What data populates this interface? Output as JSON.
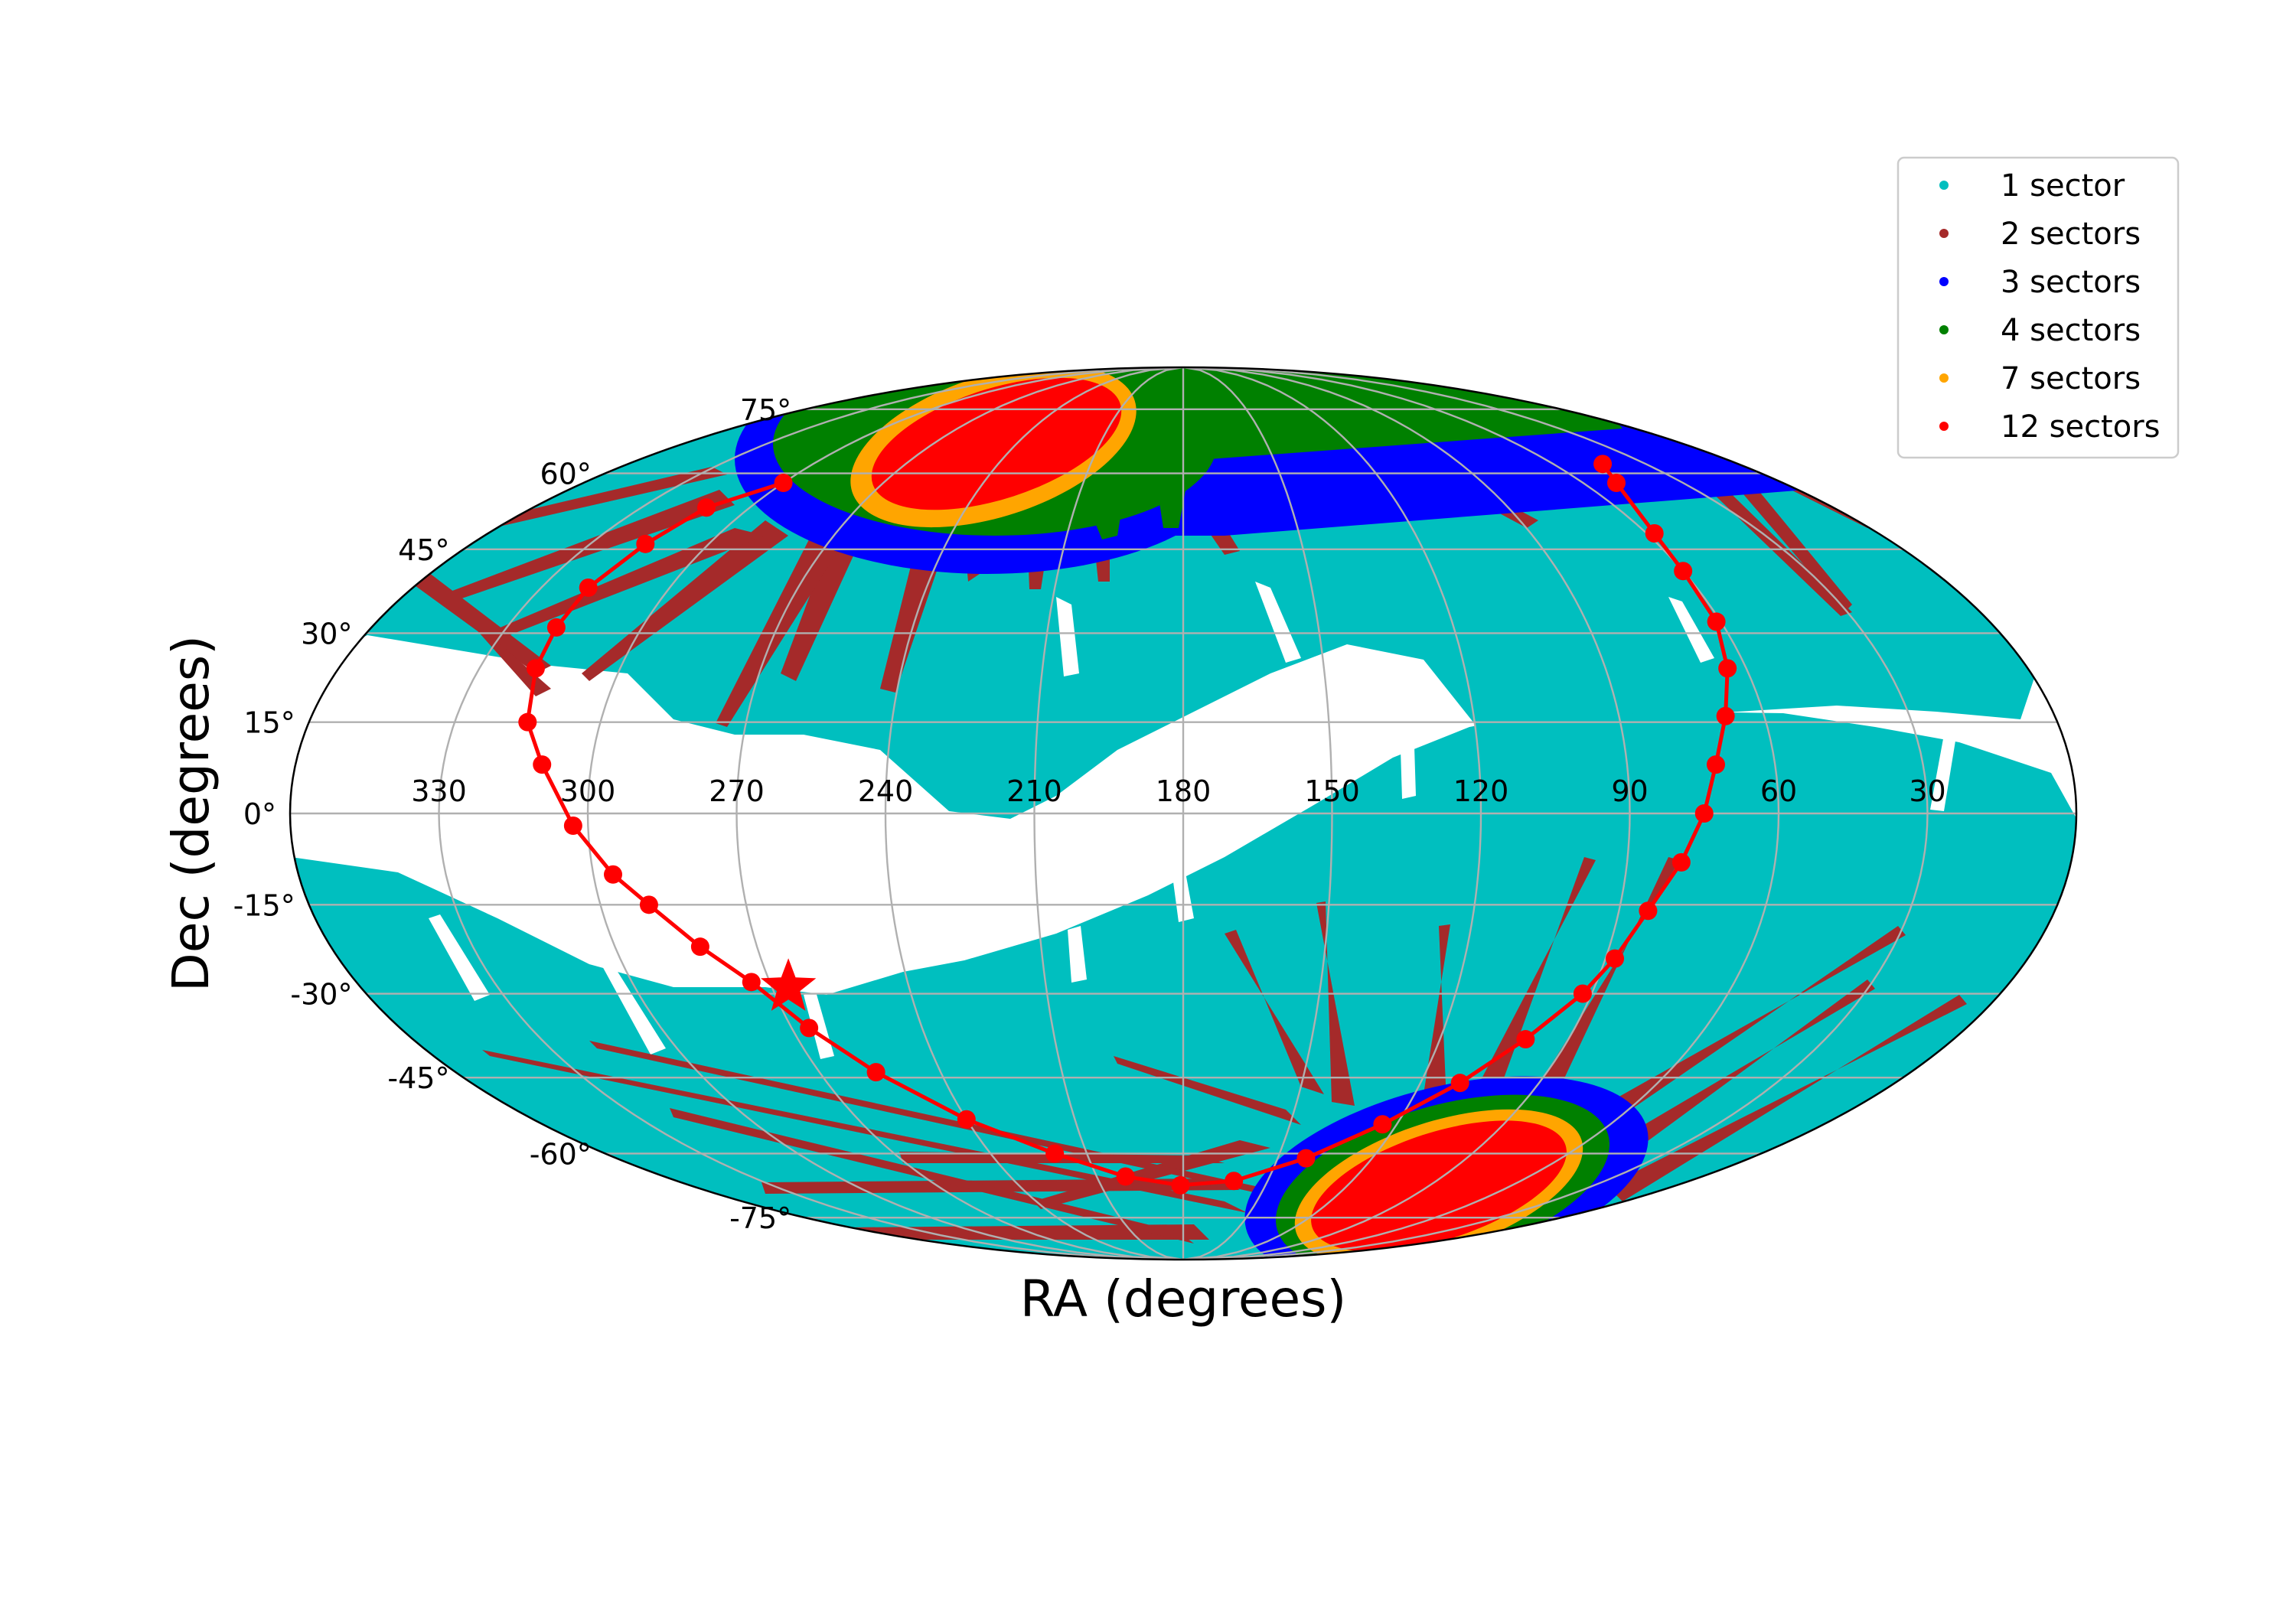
{
  "chart_data": {
    "type": "scatter",
    "projection": "mollweide",
    "xlabel": "RA (degrees)",
    "ylabel": "Dec (degrees)",
    "xlim": [
      0,
      360
    ],
    "ylim": [
      -90,
      90
    ],
    "grid": true,
    "legend_position": "top-right",
    "x_ticks": [
      "330",
      "300",
      "270",
      "240",
      "210",
      "180",
      "150",
      "120",
      "90",
      "60",
      "30"
    ],
    "y_ticks": [
      "75°",
      "60°",
      "45°",
      "30°",
      "15°",
      "0°",
      "-15°",
      "-30°",
      "-45°",
      "-60°",
      "-75°"
    ],
    "x_tick_values": [
      330,
      300,
      270,
      240,
      210,
      180,
      150,
      120,
      90,
      60,
      30
    ],
    "y_tick_values": [
      75,
      60,
      45,
      30,
      15,
      0,
      -15,
      -30,
      -45,
      -60,
      -75
    ],
    "series": [
      {
        "name": "1 sector",
        "color": "#00bfbf",
        "coverage": "broad bands covering most of both ecliptic hemispheres"
      },
      {
        "name": "2 sectors",
        "color": "#a52a2a",
        "coverage": "radial overlap spokes around the ecliptic poles"
      },
      {
        "name": "3 sectors",
        "color": "#0000ff",
        "coverage": "ring around the ecliptic poles"
      },
      {
        "name": "4 sectors",
        "color": "#008000",
        "coverage": "inner ring around the ecliptic poles"
      },
      {
        "name": "7 sectors",
        "color": "#ffa500",
        "coverage": "narrow ring at the continuous viewing zone edge"
      },
      {
        "name": "12 sectors",
        "color": "#ff0000",
        "coverage": "continuous viewing zones centred on the ecliptic poles"
      }
    ],
    "galactic_plane": {
      "color": "#ff0000",
      "marker": "o",
      "points": [
        [
          44,
          62
        ],
        [
          50,
          58
        ],
        [
          58,
          48
        ],
        [
          60,
          41
        ],
        [
          61,
          32
        ],
        [
          64,
          24
        ],
        [
          68,
          16
        ],
        [
          72,
          8
        ],
        [
          75,
          0
        ],
        [
          79,
          -8
        ],
        [
          84,
          -16
        ],
        [
          88,
          -24
        ],
        [
          92,
          -30
        ],
        [
          100,
          -38
        ],
        [
          110,
          -46
        ],
        [
          124,
          -54
        ],
        [
          141,
          -61
        ],
        [
          162,
          -66
        ],
        [
          181,
          -67
        ],
        [
          200,
          -65
        ],
        [
          220,
          -60
        ],
        [
          240,
          -53
        ],
        [
          256,
          -44
        ],
        [
          266,
          -36
        ],
        [
          274,
          -28
        ],
        [
          282,
          -22
        ],
        [
          290,
          -15
        ],
        [
          296,
          -10
        ],
        [
          303,
          -2
        ],
        [
          310,
          8
        ],
        [
          315,
          15
        ],
        [
          318,
          24
        ],
        [
          319,
          31
        ],
        [
          319,
          38
        ],
        [
          316,
          46
        ],
        [
          312,
          53
        ],
        [
          300,
          58
        ]
      ]
    },
    "star_marker": {
      "ra": 266.4,
      "dec": -28.9,
      "color": "#ff0000"
    }
  }
}
